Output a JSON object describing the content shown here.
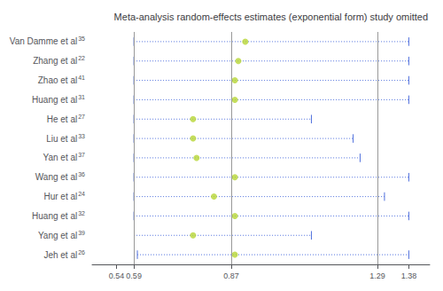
{
  "chart_data": {
    "type": "forest",
    "title": "Meta-analysis random-effects estimates (exponential form) study omitted",
    "categories": [
      "Van Damme et al",
      "Zhang et al",
      "Zhao et al",
      "Huang et al",
      "He et al",
      "Liu et al",
      "Yan et al",
      "Wang et al",
      "Hur et al",
      "Huang et al",
      "Yang et al",
      "Jeh et al"
    ],
    "superscripts": [
      "35",
      "22",
      "41",
      "31",
      "27",
      "33",
      "37",
      "36",
      "24",
      "32",
      "39",
      "26"
    ],
    "values": [
      0.91,
      0.89,
      0.88,
      0.88,
      0.76,
      0.76,
      0.77,
      0.88,
      0.82,
      0.88,
      0.76,
      0.88
    ],
    "ci_lower": [
      0.59,
      0.59,
      0.59,
      0.59,
      0.59,
      0.59,
      0.59,
      0.59,
      0.59,
      0.59,
      0.59,
      0.6
    ],
    "ci_upper": [
      1.38,
      1.38,
      1.38,
      1.38,
      1.1,
      1.22,
      1.24,
      1.38,
      1.31,
      1.38,
      1.1,
      1.38
    ],
    "left_cap": [
      true,
      true,
      true,
      true,
      true,
      true,
      true,
      true,
      true,
      true,
      false,
      true
    ],
    "right_cap": [
      true,
      true,
      true,
      true,
      true,
      true,
      true,
      true,
      true,
      true,
      true,
      true
    ],
    "vlines": [
      0.59,
      0.87,
      1.29
    ],
    "xlim": [
      0.47,
      1.44
    ],
    "xticks": [
      0.54,
      0.59,
      0.87,
      1.29,
      1.38
    ],
    "grid": false
  }
}
